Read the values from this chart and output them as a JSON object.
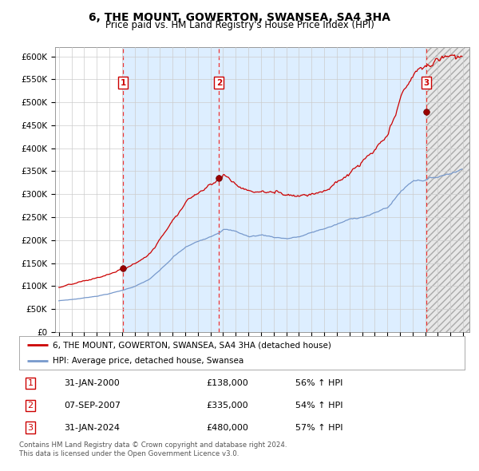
{
  "title": "6, THE MOUNT, GOWERTON, SWANSEA, SA4 3HA",
  "subtitle": "Price paid vs. HM Land Registry's House Price Index (HPI)",
  "title_fontsize": 10,
  "subtitle_fontsize": 8.5,
  "background_color": "#ffffff",
  "plot_bg_color": "#ddeeff",
  "grid_color": "#cccccc",
  "ylabel_ticks": [
    "£0",
    "£50K",
    "£100K",
    "£150K",
    "£200K",
    "£250K",
    "£300K",
    "£350K",
    "£400K",
    "£450K",
    "£500K",
    "£550K",
    "£600K"
  ],
  "ytick_values": [
    0,
    50000,
    100000,
    150000,
    200000,
    250000,
    300000,
    350000,
    400000,
    450000,
    500000,
    550000,
    600000
  ],
  "ylim": [
    0,
    620000
  ],
  "xlim_start": 1994.7,
  "xlim_end": 2027.5,
  "sale_dates": [
    2000.08,
    2007.68,
    2024.08
  ],
  "sale_prices": [
    138000,
    335000,
    480000
  ],
  "sale_labels": [
    "1",
    "2",
    "3"
  ],
  "sale_label_dates": [
    "31-JAN-2000",
    "07-SEP-2007",
    "31-JAN-2024"
  ],
  "sale_label_prices": [
    "£138,000",
    "£335,000",
    "£480,000"
  ],
  "sale_label_hpi": [
    "56% ↑ HPI",
    "54% ↑ HPI",
    "57% ↑ HPI"
  ],
  "red_line_color": "#cc0000",
  "blue_line_color": "#7799cc",
  "dot_color": "#990000",
  "dashed_line_color": "#ee3333",
  "legend_line1": "6, THE MOUNT, GOWERTON, SWANSEA, SA4 3HA (detached house)",
  "legend_line2": "HPI: Average price, detached house, Swansea",
  "footnote": "Contains HM Land Registry data © Crown copyright and database right 2024.\nThis data is licensed under the Open Government Licence v3.0.",
  "xtick_years": [
    1995,
    1996,
    1997,
    1998,
    1999,
    2000,
    2001,
    2002,
    2003,
    2004,
    2005,
    2006,
    2007,
    2008,
    2009,
    2010,
    2011,
    2012,
    2013,
    2014,
    2015,
    2016,
    2017,
    2018,
    2019,
    2020,
    2021,
    2022,
    2023,
    2024,
    2025,
    2026,
    2027
  ]
}
